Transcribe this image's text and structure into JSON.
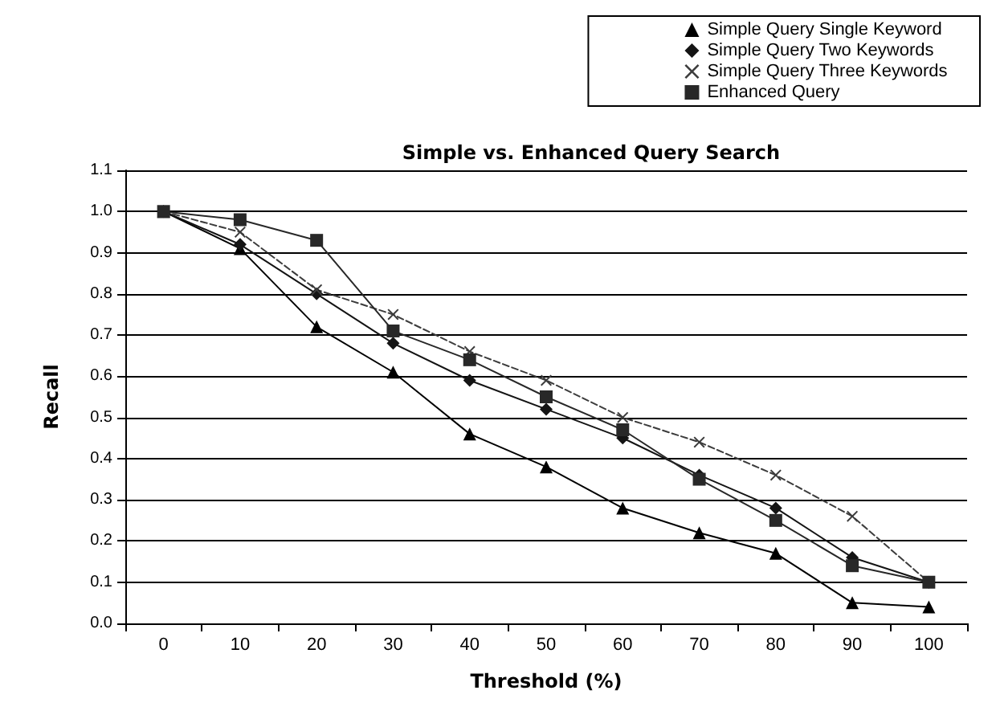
{
  "chart_data": {
    "type": "line",
    "title": "Simple vs. Enhanced Query Search",
    "xlabel": "Threshold (%)",
    "ylabel": "Recall",
    "categories": [
      "0",
      "10",
      "20",
      "30",
      "40",
      "50",
      "60",
      "70",
      "80",
      "90",
      "100"
    ],
    "series": [
      {
        "name": "Simple Query Single Keyword",
        "color": "#000000",
        "marker": "triangle",
        "line_style": "solid",
        "values": [
          1.0,
          0.91,
          0.72,
          0.61,
          0.46,
          0.38,
          0.28,
          0.22,
          0.17,
          0.05,
          0.04
        ]
      },
      {
        "name": "Simple Query Two Keywords",
        "color": "#141414",
        "marker": "diamond",
        "line_style": "solid",
        "values": [
          1.0,
          0.92,
          0.8,
          0.68,
          0.59,
          0.52,
          0.45,
          0.36,
          0.28,
          0.16,
          0.1
        ]
      },
      {
        "name": "Simple Query Three Keywords",
        "color": "#3c3c3c",
        "marker": "cross",
        "line_style": "dashed",
        "values": [
          1.0,
          0.95,
          0.81,
          0.75,
          0.66,
          0.59,
          0.5,
          0.44,
          0.36,
          0.26,
          0.1
        ]
      },
      {
        "name": "Enhanced Query",
        "color": "#282828",
        "marker": "square",
        "line_style": "solid",
        "values": [
          1.0,
          0.98,
          0.93,
          0.71,
          0.64,
          0.55,
          0.47,
          0.35,
          0.25,
          0.14,
          0.1
        ]
      }
    ],
    "ylim": [
      0,
      1.1
    ],
    "yticks": [
      {
        "value": 0,
        "label": "0.0"
      },
      {
        "value": 0.1,
        "label": "0.1"
      },
      {
        "value": 0.2,
        "label": "0.2"
      },
      {
        "value": 0.3,
        "label": "0.3"
      },
      {
        "value": 0.4,
        "label": "0.4"
      },
      {
        "value": 0.5,
        "label": "0.5"
      },
      {
        "value": 0.6,
        "label": "0.6"
      },
      {
        "value": 0.7,
        "label": "0.7"
      },
      {
        "value": 0.8,
        "label": "0.8"
      },
      {
        "value": 0.9,
        "label": "0.9"
      },
      {
        "value": 1.0,
        "label": "1.0"
      },
      {
        "value": 1.1,
        "label": "1.1"
      }
    ],
    "grid": "y",
    "legend": "top right"
  }
}
